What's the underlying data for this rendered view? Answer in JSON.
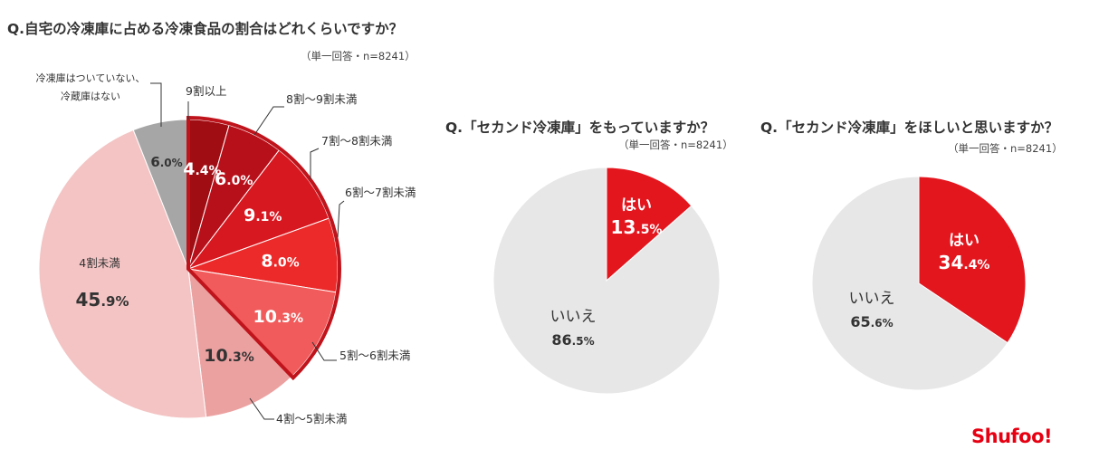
{
  "q1": {
    "title": "Q.自宅の冷凍庫に占める冷凍食品の割合はどれくらいですか？",
    "note": "（単一回答・n=8241）"
  },
  "q2": {
    "title": "Q.「セカンド冷凍庫」をもっていますか？",
    "note": "（単一回答・n=8241）"
  },
  "q3": {
    "title": "Q.「セカンド冷凍庫」をほしいと思いますか？",
    "note": "（単一回答・n=8241）"
  },
  "logo": "Shufoo!",
  "chart_data": [
    {
      "type": "pie",
      "title": "Q.自宅の冷凍庫に占める冷凍食品の割合はどれくらいですか？",
      "categories": [
        "9割以上",
        "8割～9割未満",
        "7割～8割未満",
        "6割～7割未満",
        "5割～6割未満",
        "4割～5割未満",
        "4割未満",
        "冷凍庫はついていない、冷蔵庫はない"
      ],
      "values": [
        4.4,
        6.0,
        9.1,
        8.0,
        10.3,
        10.3,
        45.9,
        6.0
      ],
      "value_labels": [
        "4.4%",
        "6.0%",
        "9.1%",
        "8.0%",
        "10.3%",
        "10.3%",
        "45.9%",
        "6.0%"
      ],
      "colors": [
        "#a00d13",
        "#b8101a",
        "#d81820",
        "#ec2a2a",
        "#f15b5b",
        "#eca1a1",
        "#f4c4c4",
        "#a6a6a6"
      ],
      "highlight_outline": "9割以上 through 5割～6割未満",
      "outline_color": "#c0141c"
    },
    {
      "type": "pie",
      "title": "Q.「セカンド冷凍庫」をもっていますか？",
      "categories": [
        "はい",
        "いいえ"
      ],
      "values": [
        13.5,
        86.5
      ],
      "value_labels": [
        "13.5%",
        "86.5%"
      ],
      "colors": [
        "#e3161e",
        "#e7e7e7"
      ]
    },
    {
      "type": "pie",
      "title": "Q.「セカンド冷凍庫」をほしいと思いますか？",
      "categories": [
        "はい",
        "いいえ"
      ],
      "values": [
        34.4,
        65.6
      ],
      "value_labels": [
        "34.4%",
        "65.6%"
      ],
      "colors": [
        "#e3161e",
        "#e7e7e7"
      ]
    }
  ]
}
